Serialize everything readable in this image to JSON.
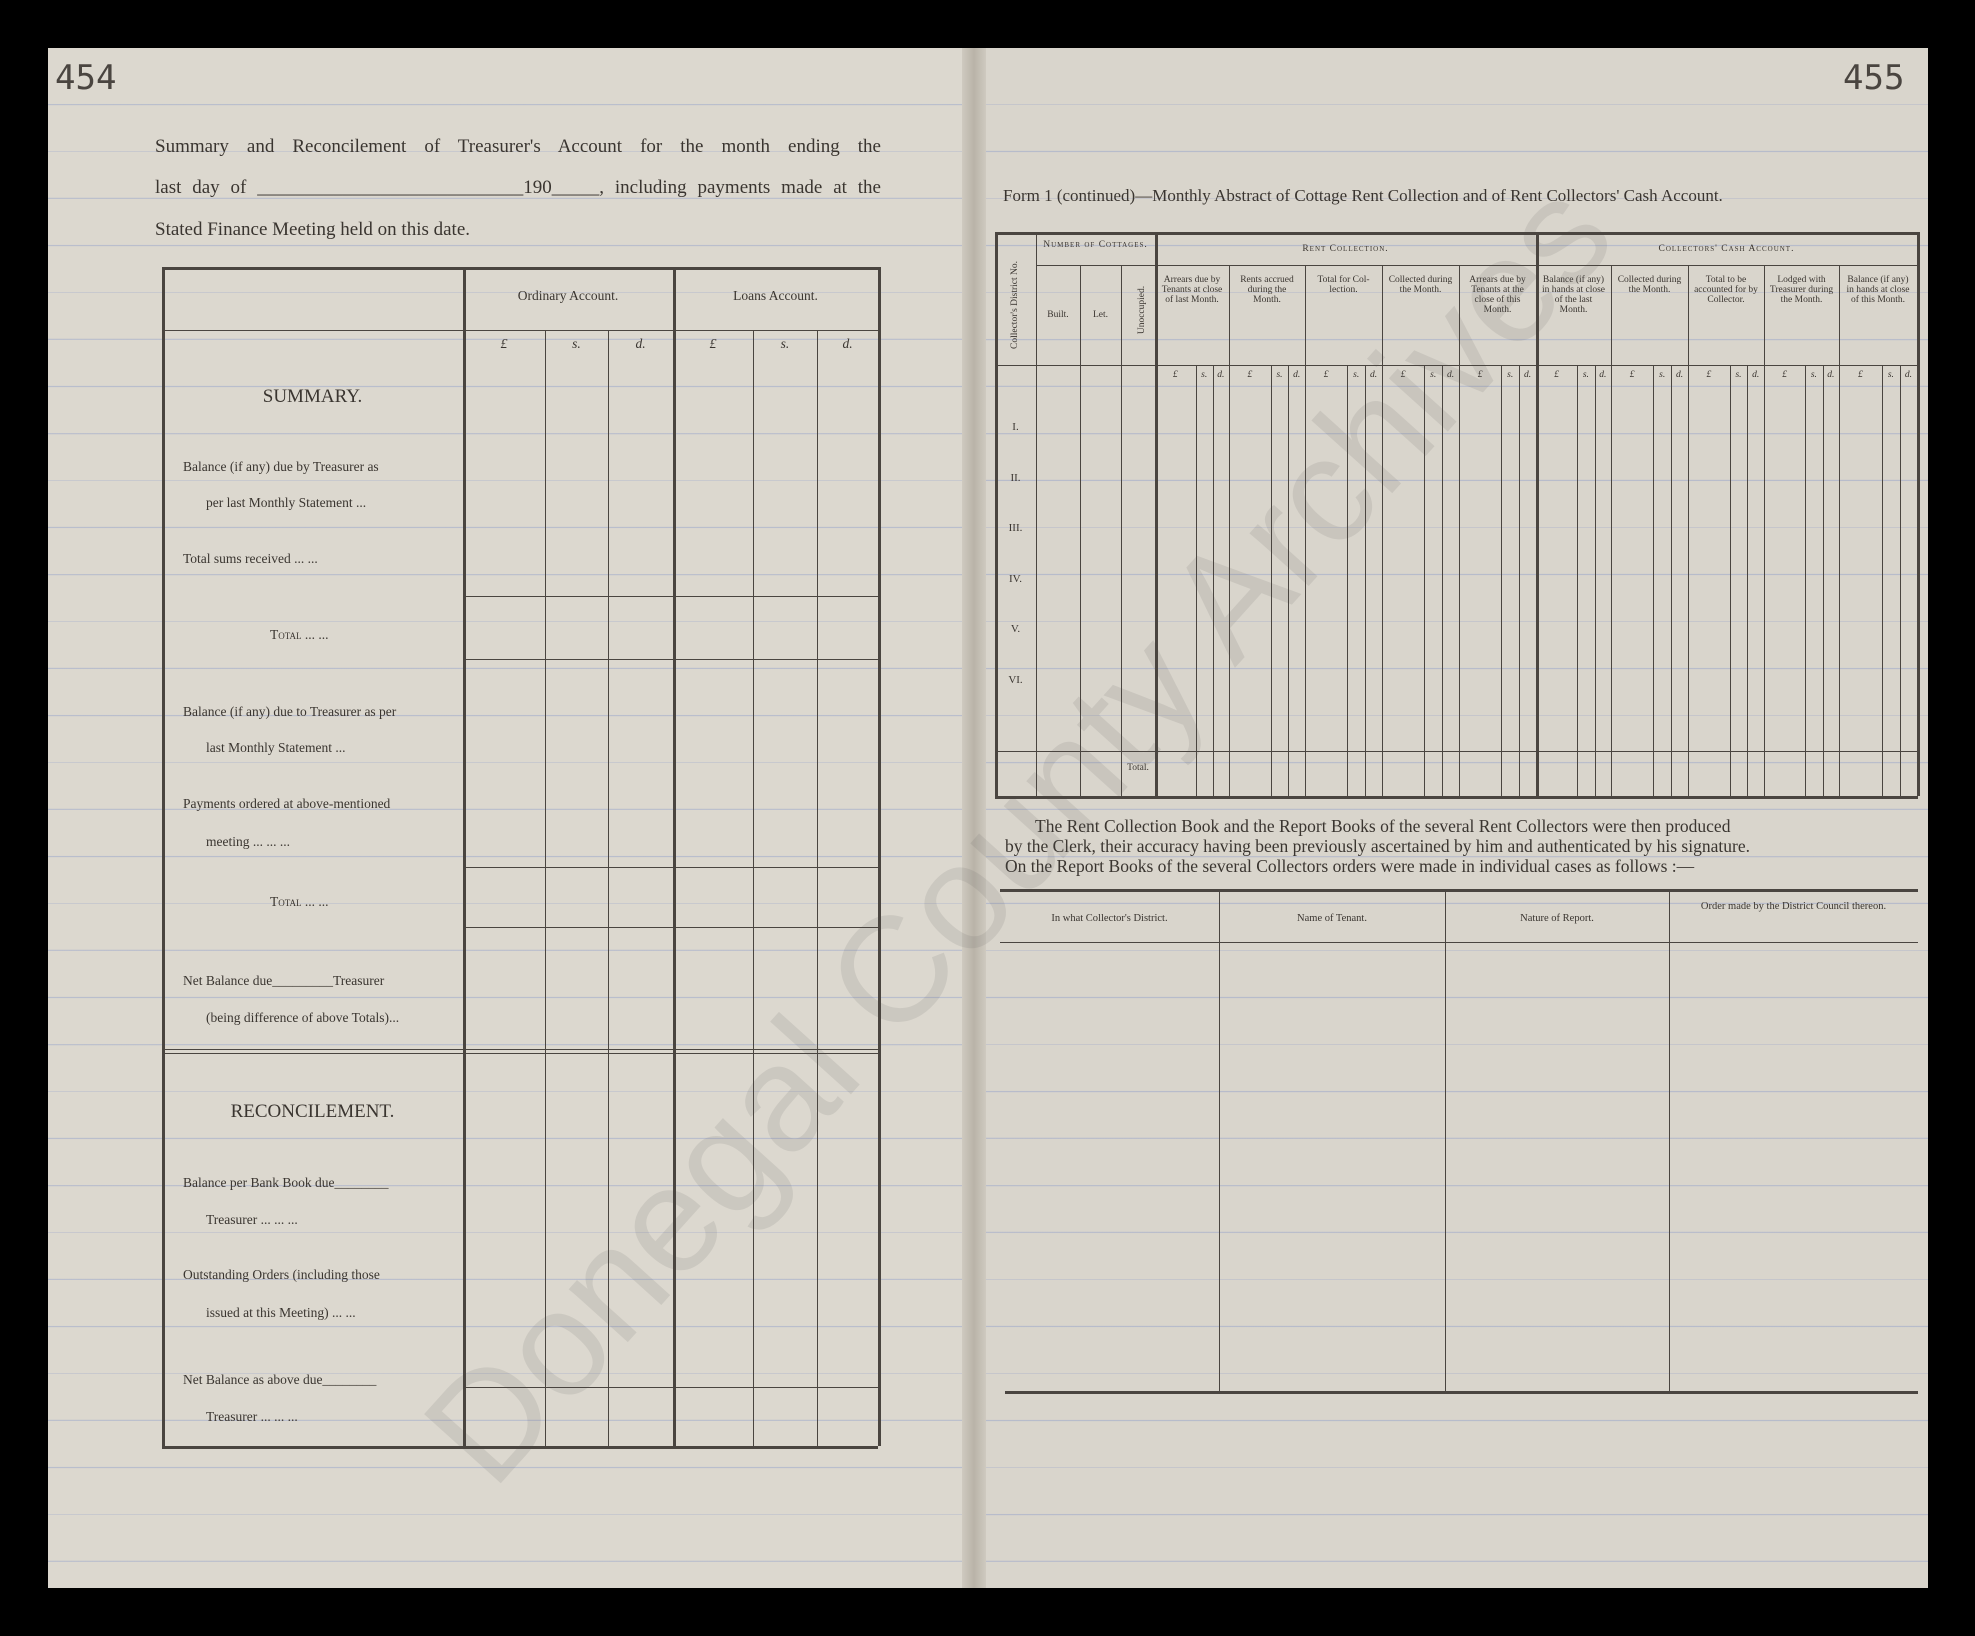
{
  "left_page": {
    "page_number": "454",
    "intro_lines": [
      "Summary and Reconcilement of Treasurer's Account for the month ending the",
      "last day of ____________________________190_____, including payments made at the",
      "Stated Finance Meeting held on this date."
    ],
    "col_ordinary": "Ordinary Account.",
    "col_loans": "Loans Account.",
    "currency": [
      "£",
      "s.",
      "d."
    ],
    "summary_title": "SUMMARY.",
    "rows": [
      {
        "l1": "Balance (if any) due by Treasurer as",
        "l2": "per last Monthly Statement ..."
      },
      {
        "l1": "Total sums received ... ...",
        "l2": ""
      },
      {
        "l1": "Total ... ...",
        "l2": ""
      },
      {
        "l1": "Balance (if any) due to Treasurer as per",
        "l2": "last Monthly Statement ..."
      },
      {
        "l1": "Payments ordered at above-mentioned",
        "l2": "meeting ... ... ..."
      },
      {
        "l1": "Total ... ...",
        "l2": ""
      },
      {
        "l1": "Net Balance due_________Treasurer",
        "l2": "(being difference of above Totals)..."
      }
    ],
    "reconcilement_title": "RECONCILEMENT.",
    "rec_rows": [
      {
        "l1": "Balance per Bank Book due________",
        "l2": "Treasurer ... ... ..."
      },
      {
        "l1": "Outstanding Orders (including those",
        "l2": "issued at this Meeting) ... ..."
      },
      {
        "l1": "Net Balance as above due________",
        "l2": "Treasurer ... ... ..."
      }
    ]
  },
  "right_page": {
    "page_number": "455",
    "form_title": "Form 1 (continued)—Monthly Abstract of Cottage Rent Collection and of Rent Collectors' Cash Account.",
    "col_district": "Collector's District No.",
    "group_cottages": "Number of Cottages.",
    "cottages": [
      "Built.",
      "Let.",
      "Unoccupied."
    ],
    "group_rent": "Rent Collection.",
    "rent_cols": [
      "Arrears due by Tenants at close of last Month.",
      "Rents accrued during the Month.",
      "Total for Col-lection.",
      "Collected during the Month.",
      "Arrears due by Tenants at the close of this Month."
    ],
    "group_cash": "Collectors' Cash Account.",
    "cash_cols": [
      "Balance (if any) in hands at close of the last Month.",
      "Collected during the Month.",
      "Total to be accounted for by Collector.",
      "Lodged with Treasurer during the Month.",
      "Balance (if any) in hands at close of this Month."
    ],
    "currency": [
      "£",
      "s.",
      "d."
    ],
    "districts": [
      "I.",
      "II.",
      "III.",
      "IV.",
      "V.",
      "VI."
    ],
    "total_label": "Total.",
    "paragraph": [
      "The Rent Collection Book and the Report Books of the several Rent Collectors were then produced",
      "by the Clerk, their accuracy having been previously ascertained by him and authenticated by his signature.",
      "On the Report Books of the several Collectors orders were made in individual cases as follows :—"
    ],
    "orders_cols": [
      "In what Collector's District.",
      "Name of Tenant.",
      "Nature of Report.",
      "Order made by the District Council thereon."
    ]
  },
  "watermark": "Donegal County Archives"
}
